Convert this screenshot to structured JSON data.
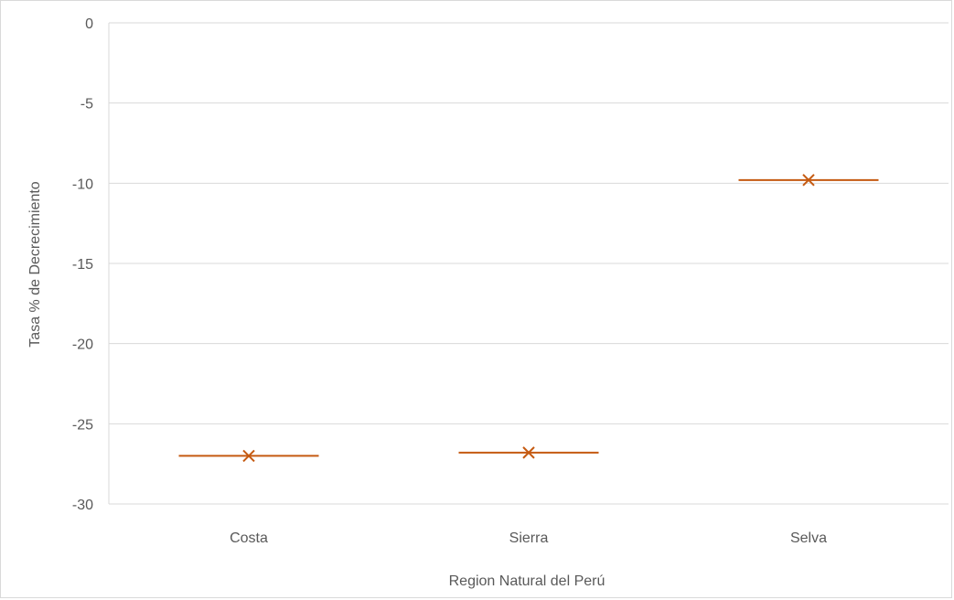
{
  "chart_data": {
    "type": "scatter",
    "title": "",
    "xlabel": "Region Natural del Perú",
    "ylabel": "Tasa % de Decrecimiento",
    "categories": [
      "Costa",
      "Sierra",
      "Selva"
    ],
    "series": [
      {
        "values": [
          -27.0,
          -26.8,
          -9.8
        ],
        "marker": "x",
        "with_horizontal_bar": true,
        "color": "#c55a11"
      }
    ],
    "ylim": [
      -30,
      0
    ],
    "yticks": [
      "0",
      "-5",
      "-10",
      "-15",
      "-20",
      "-25",
      "-30"
    ],
    "grid": true,
    "legend": "none"
  }
}
